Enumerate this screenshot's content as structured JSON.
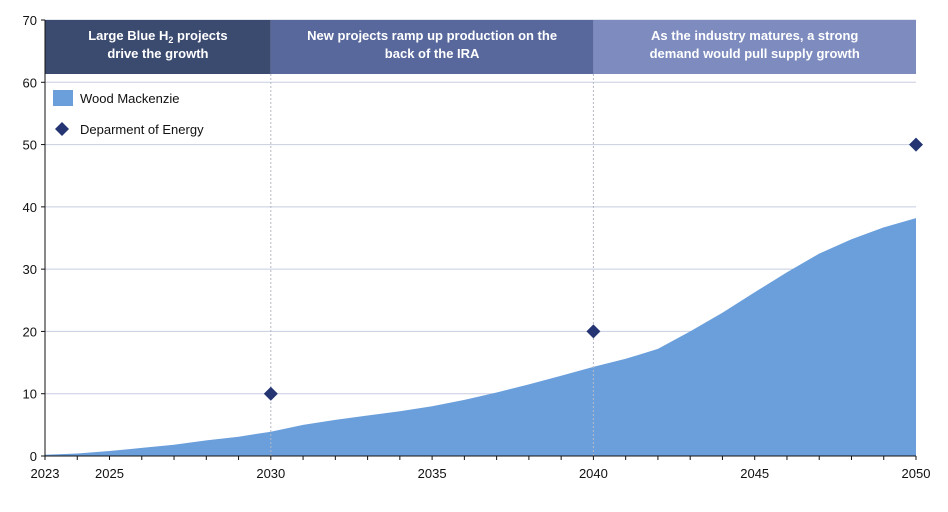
{
  "chart_data": {
    "type": "area",
    "xlim": [
      2023,
      2050
    ],
    "ylim": [
      0,
      70
    ],
    "y_ticks": [
      "0",
      "10",
      "20",
      "30",
      "40",
      "50",
      "60",
      "70"
    ],
    "x_ticks": [
      "2023",
      "2025",
      "2030",
      "2035",
      "2040",
      "2045",
      "2050"
    ],
    "grid": "horizontal",
    "legend_position": "top-left",
    "series": [
      {
        "name": "Wood Mackenzie",
        "type": "area",
        "color": "#6a9fdc",
        "x": [
          2023,
          2024,
          2025,
          2026,
          2027,
          2028,
          2029,
          2030,
          2031,
          2032,
          2033,
          2034,
          2035,
          2036,
          2037,
          2038,
          2039,
          2040,
          2041,
          2042,
          2043,
          2044,
          2045,
          2046,
          2047,
          2048,
          2049,
          2050
        ],
        "values": [
          0.2,
          0.4,
          0.8,
          1.3,
          1.8,
          2.5,
          3.1,
          3.9,
          5.0,
          5.8,
          6.5,
          7.2,
          8.0,
          9.0,
          10.2,
          11.5,
          12.9,
          14.3,
          15.6,
          17.2,
          20.0,
          23.0,
          26.3,
          29.5,
          32.5,
          34.8,
          36.7,
          38.2
        ]
      },
      {
        "name": "Deparment of Energy",
        "type": "scatter",
        "marker": "diamond",
        "color": "#253574",
        "x": [
          2030,
          2040,
          2050
        ],
        "values": [
          10,
          20,
          50
        ]
      }
    ],
    "phases": [
      {
        "line1": "Large Blue H",
        "sub": "2",
        "line1_tail": " projects",
        "line2": "drive the growth",
        "from": 2023,
        "to": 2030,
        "color": "#3b4a6f"
      },
      {
        "line1": "New projects ramp up production on the",
        "sub": "",
        "line1_tail": "",
        "line2": "back of the IRA",
        "from": 2030,
        "to": 2040,
        "color": "#58689c"
      },
      {
        "line1": "As the industry matures, a strong",
        "sub": "",
        "line1_tail": "",
        "line2": "demand would pull supply growth",
        "from": 2040,
        "to": 2050,
        "color": "#7d8bbf"
      }
    ]
  }
}
